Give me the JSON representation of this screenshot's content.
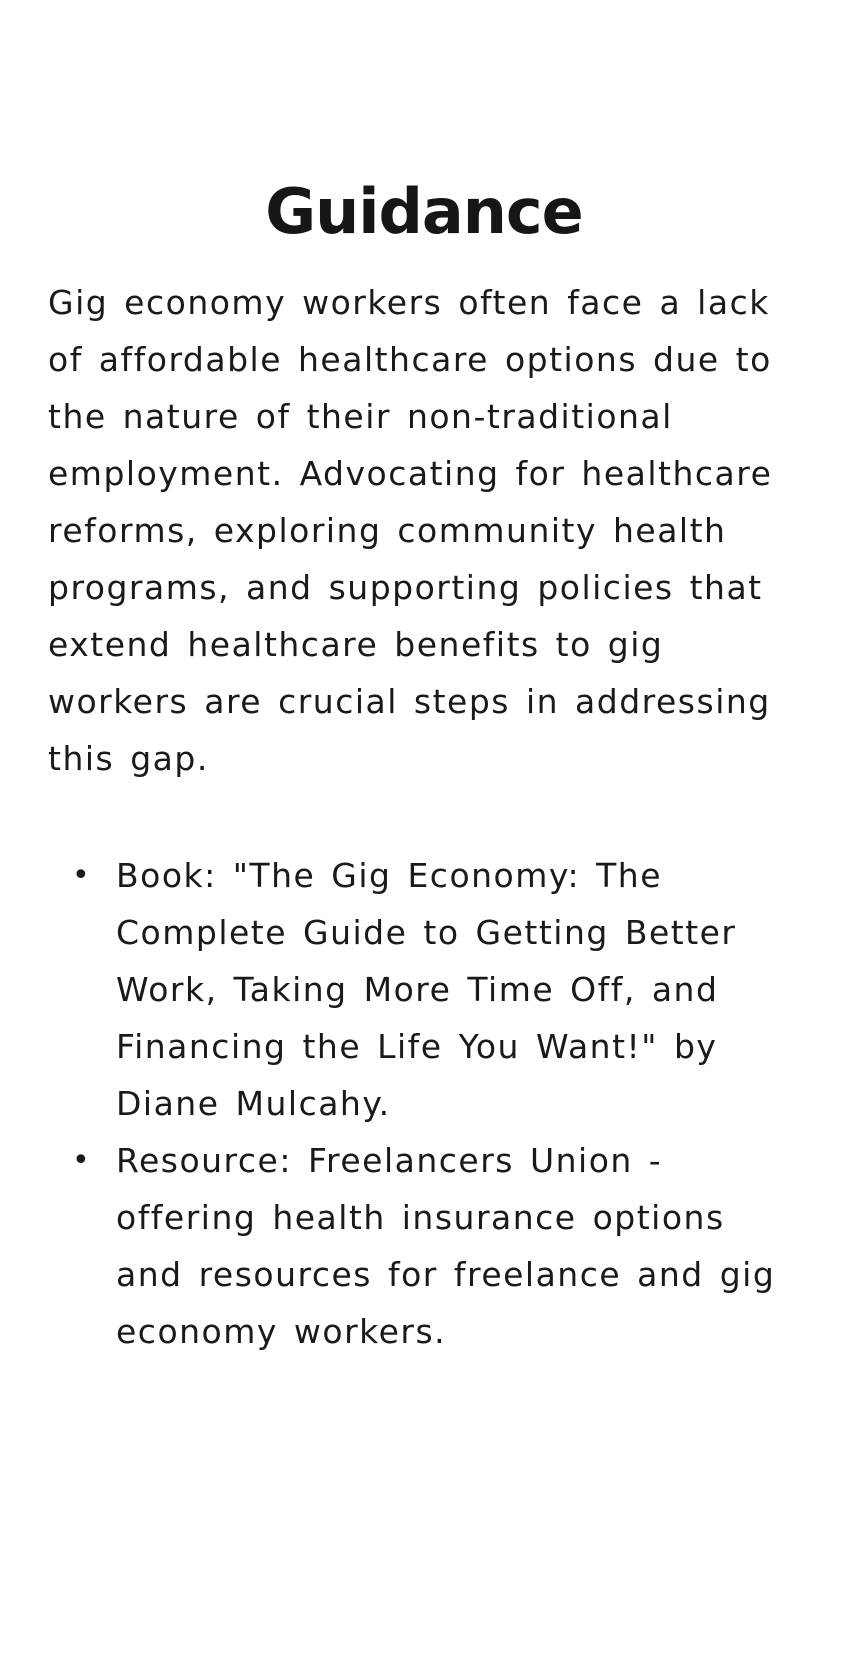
{
  "heading": "Guidance",
  "paragraph": "Gig economy workers often face a lack of affordable healthcare options due to the nature of their non-traditional employment. Advocating for healthcare reforms, exploring community health programs, and supporting policies that extend healthcare benefits to gig workers are crucial steps in addressing this gap.",
  "resources": [
    {
      "bullet": "•",
      "text": "Book: \"The Gig Economy: The Complete Guide to Getting Better Work, Taking More Time Off, and Financing the Life You Want!\" by Diane Mulcahy."
    },
    {
      "bullet": "•",
      "text": "Resource: Freelancers Union - offering health insurance options and resources for freelance and gig economy workers."
    }
  ]
}
